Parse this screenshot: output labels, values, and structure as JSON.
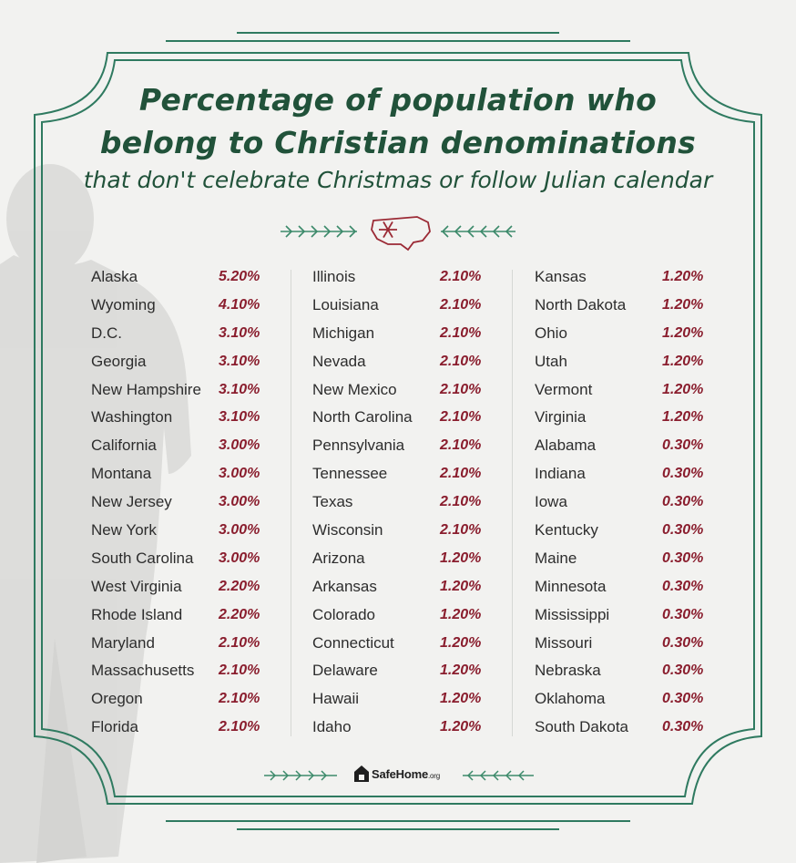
{
  "chart_data": {
    "type": "table",
    "title": "Percentage of population who belong to Christian denominations",
    "subtitle": "that don't celebrate Christmas or follow Julian calendar",
    "columns": [
      [
        {
          "state": "Alaska",
          "value": "5.20%"
        },
        {
          "state": "Wyoming",
          "value": "4.10%"
        },
        {
          "state": "D.C.",
          "value": "3.10%"
        },
        {
          "state": "Georgia",
          "value": "3.10%"
        },
        {
          "state": "New Hampshire",
          "value": "3.10%"
        },
        {
          "state": "Washington",
          "value": "3.10%"
        },
        {
          "state": "California",
          "value": "3.00%"
        },
        {
          "state": "Montana",
          "value": "3.00%"
        },
        {
          "state": "New Jersey",
          "value": "3.00%"
        },
        {
          "state": "New York",
          "value": "3.00%"
        },
        {
          "state": "South Carolina",
          "value": "3.00%"
        },
        {
          "state": "West Virginia",
          "value": "2.20%"
        },
        {
          "state": "Rhode Island",
          "value": "2.20%"
        },
        {
          "state": "Maryland",
          "value": "2.10%"
        },
        {
          "state": "Massachusetts",
          "value": "2.10%"
        },
        {
          "state": "Oregon",
          "value": "2.10%"
        },
        {
          "state": "Florida",
          "value": "2.10%"
        }
      ],
      [
        {
          "state": "Illinois",
          "value": "2.10%"
        },
        {
          "state": "Louisiana",
          "value": "2.10%"
        },
        {
          "state": "Michigan",
          "value": "2.10%"
        },
        {
          "state": "Nevada",
          "value": "2.10%"
        },
        {
          "state": "New Mexico",
          "value": "2.10%"
        },
        {
          "state": "North Carolina",
          "value": "2.10%"
        },
        {
          "state": "Pennsylvania",
          "value": "2.10%"
        },
        {
          "state": "Tennessee",
          "value": "2.10%"
        },
        {
          "state": "Texas",
          "value": "2.10%"
        },
        {
          "state": "Wisconsin",
          "value": "2.10%"
        },
        {
          "state": "Arizona",
          "value": "1.20%"
        },
        {
          "state": "Arkansas",
          "value": "1.20%"
        },
        {
          "state": "Colorado",
          "value": "1.20%"
        },
        {
          "state": "Connecticut",
          "value": "1.20%"
        },
        {
          "state": "Delaware",
          "value": "1.20%"
        },
        {
          "state": "Hawaii",
          "value": "1.20%"
        },
        {
          "state": "Idaho",
          "value": "1.20%"
        }
      ],
      [
        {
          "state": "Kansas",
          "value": "1.20%"
        },
        {
          "state": "North Dakota",
          "value": "1.20%"
        },
        {
          "state": "Ohio",
          "value": "1.20%"
        },
        {
          "state": "Utah",
          "value": "1.20%"
        },
        {
          "state": "Vermont",
          "value": "1.20%"
        },
        {
          "state": "Virginia",
          "value": "1.20%"
        },
        {
          "state": "Alabama",
          "value": "0.30%"
        },
        {
          "state": "Indiana",
          "value": "0.30%"
        },
        {
          "state": "Iowa",
          "value": "0.30%"
        },
        {
          "state": "Kentucky",
          "value": "0.30%"
        },
        {
          "state": "Maine",
          "value": "0.30%"
        },
        {
          "state": "Minnesota",
          "value": "0.30%"
        },
        {
          "state": "Mississippi",
          "value": "0.30%"
        },
        {
          "state": "Missouri",
          "value": "0.30%"
        },
        {
          "state": "Nebraska",
          "value": "0.30%"
        },
        {
          "state": "Oklahoma",
          "value": "0.30%"
        },
        {
          "state": "South Dakota",
          "value": "0.30%"
        }
      ]
    ]
  },
  "header": {
    "title_line1": "Percentage of population who",
    "title_line2": "belong to Christian denominations"
  },
  "footer": {
    "logo_name": "SafeHome",
    "logo_suffix": ".org"
  },
  "colors": {
    "frame": "#2f7a60",
    "title": "#21523a",
    "value": "#8a1e2e",
    "sprig": "#3c8a6a",
    "map_icon": "#9b2a35"
  },
  "icons": {
    "ornament": "snowflake-usa-map-icon",
    "sprig": "pine-sprig-icon",
    "logo": "house-logo-icon"
  }
}
